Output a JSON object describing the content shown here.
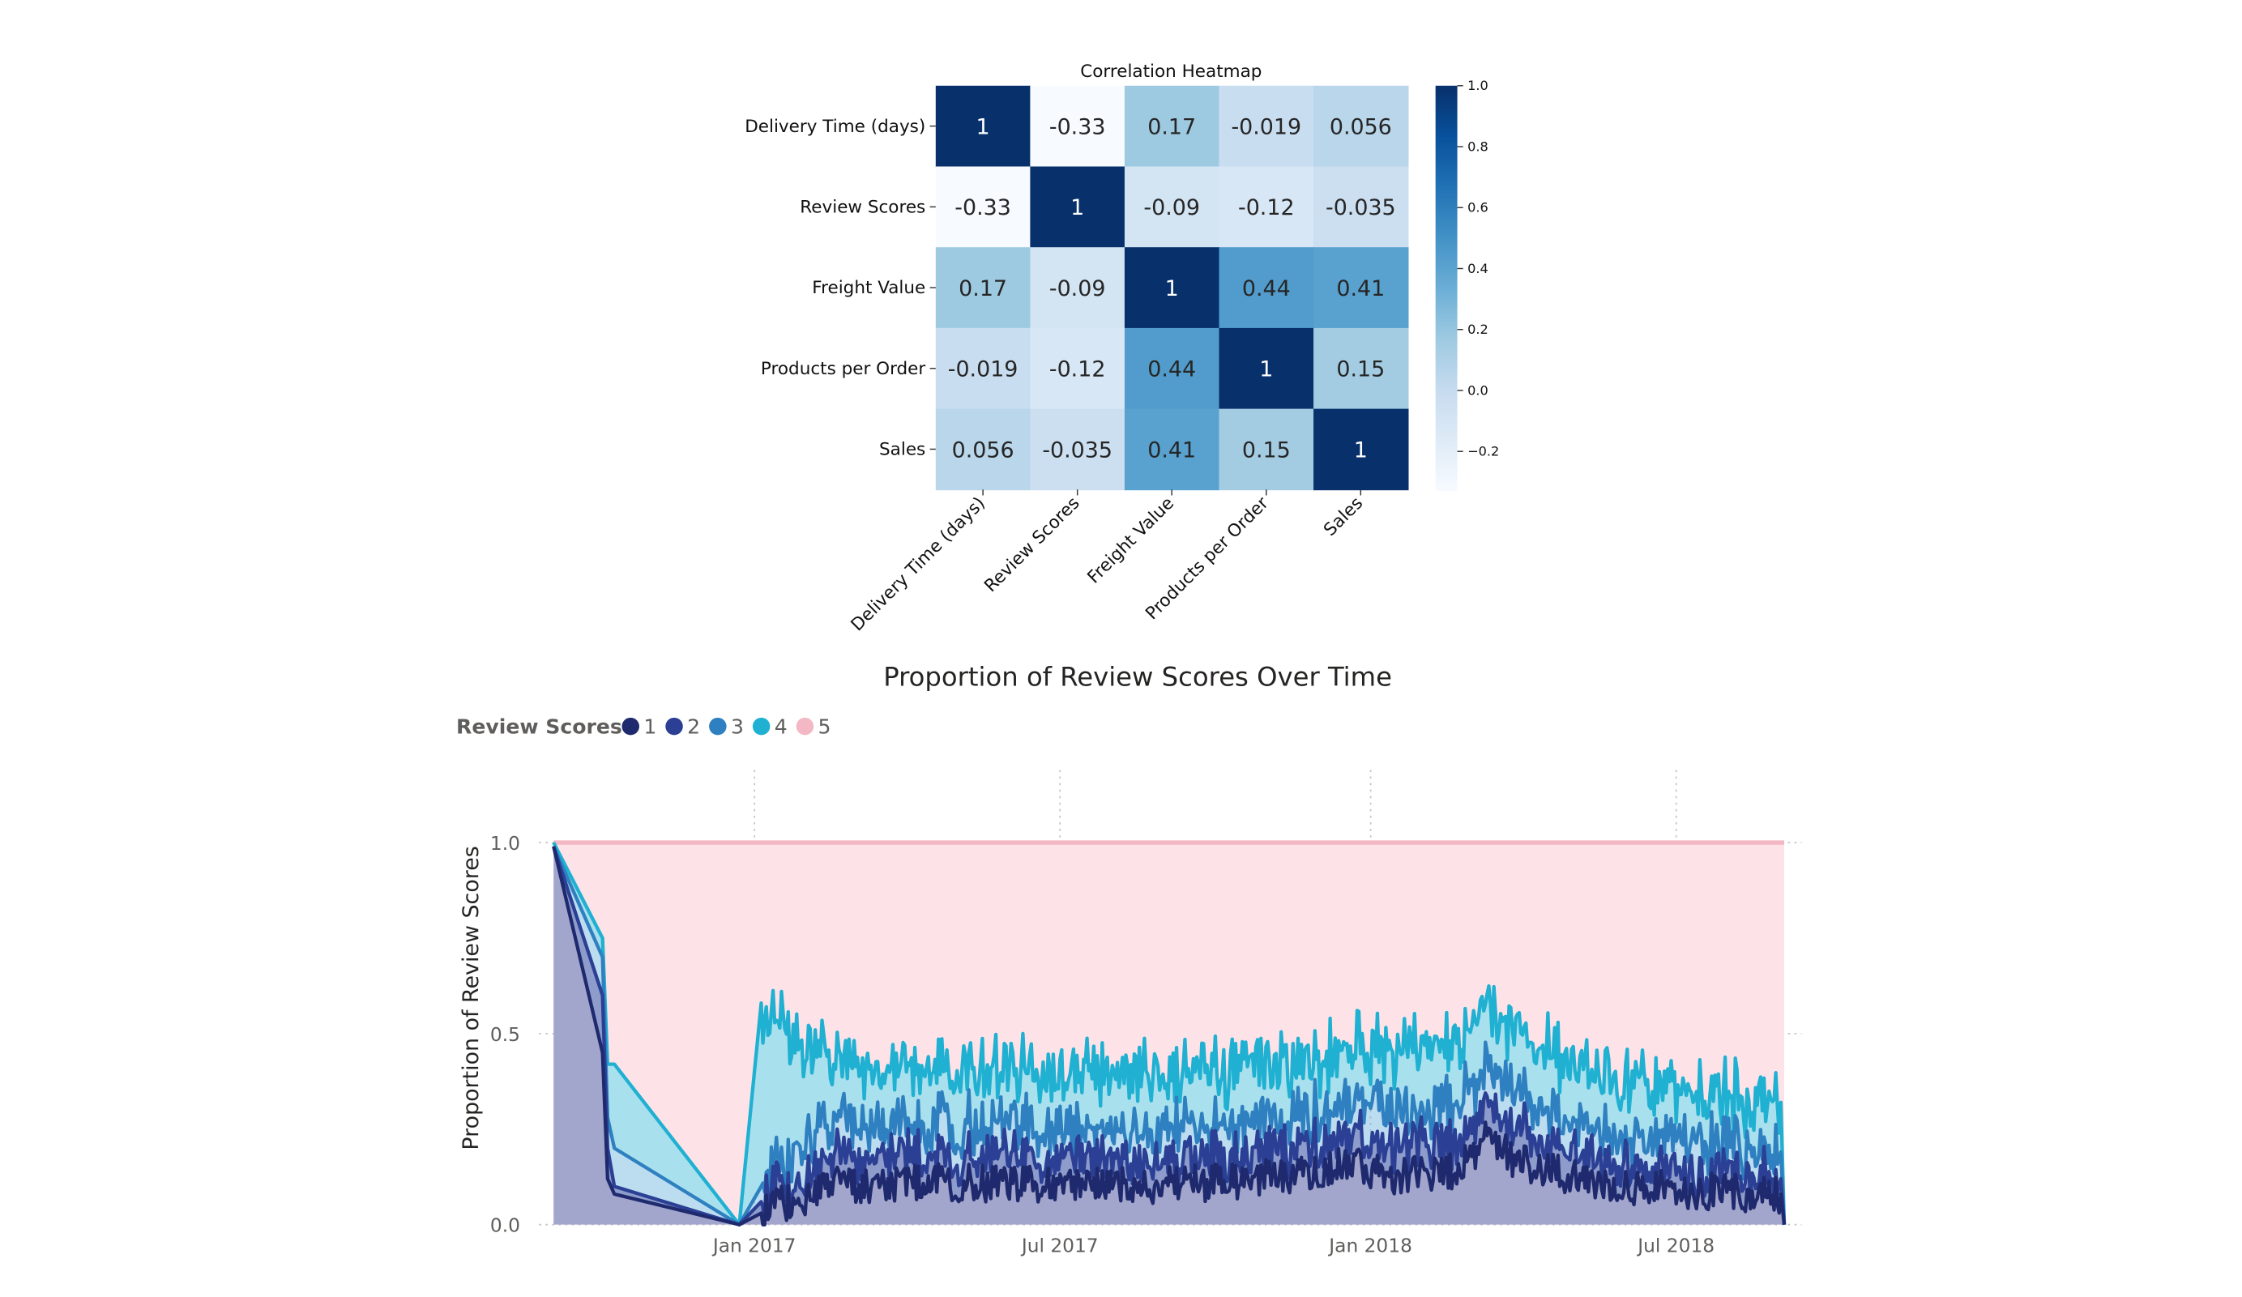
{
  "chart_data": [
    {
      "type": "heatmap",
      "title": "Correlation Heatmap",
      "rows": [
        "Delivery Time (days)",
        "Review Scores",
        "Freight Value",
        "Products per Order",
        "Sales"
      ],
      "cols": [
        "Delivery Time (days)",
        "Review Scores",
        "Freight Value",
        "Products per Order",
        "Sales"
      ],
      "values": [
        [
          1,
          -0.33,
          0.17,
          -0.019,
          0.056
        ],
        [
          -0.33,
          1,
          -0.09,
          -0.12,
          -0.035
        ],
        [
          0.17,
          -0.09,
          1,
          0.44,
          0.41
        ],
        [
          -0.019,
          -0.12,
          0.44,
          1,
          0.15
        ],
        [
          0.056,
          -0.035,
          0.41,
          0.15,
          1
        ]
      ],
      "labels": [
        [
          "1",
          "-0.33",
          "0.17",
          "-0.019",
          "0.056"
        ],
        [
          "-0.33",
          "1",
          "-0.09",
          "-0.12",
          "-0.035"
        ],
        [
          "0.17",
          "-0.09",
          "1",
          "0.44",
          "0.41"
        ],
        [
          "-0.019",
          "-0.12",
          "0.44",
          "1",
          "0.15"
        ],
        [
          "0.056",
          "-0.035",
          "0.41",
          "0.15",
          "1"
        ]
      ],
      "colorbar": {
        "min": -0.33,
        "max": 1.0,
        "ticks": [
          "1.0",
          "0.8",
          "0.6",
          "0.4",
          "0.2",
          "0.0",
          "−0.2"
        ],
        "tick_values": [
          1.0,
          0.8,
          0.6,
          0.4,
          0.2,
          0.0,
          -0.2
        ]
      },
      "colormap": "Blues"
    },
    {
      "type": "area",
      "stacked": true,
      "title": "Proportion of Review Scores Over Time",
      "ylabel": "Proportion of Review Scores",
      "xlabel": "",
      "ylim": [
        0,
        1
      ],
      "yticks": [
        "0.0",
        "0.5",
        "1.0"
      ],
      "xticks": [
        "Jan 2017",
        "Jul 2017",
        "Jan 2018",
        "Jul 2018"
      ],
      "xtick_dates": [
        "2017-01-01",
        "2017-07-01",
        "2018-01-01",
        "2018-07-01"
      ],
      "x_range": [
        "2016-09-04",
        "2018-09-03"
      ],
      "legend": {
        "title": "Review Scores",
        "position": "top-left"
      },
      "series": [
        {
          "name": "1",
          "color": "#1f2a6e"
        },
        {
          "name": "2",
          "color": "#2b3f95"
        },
        {
          "name": "3",
          "color": "#2f80c0"
        },
        {
          "name": "4",
          "color": "#1fb0d2"
        },
        {
          "name": "5",
          "color": "#f4b8c5"
        }
      ],
      "points": [
        {
          "date": "2016-09-04",
          "cum": [
            0.99,
            0.99,
            0.99,
            1.0,
            1.0
          ]
        },
        {
          "date": "2016-10-03",
          "cum": [
            0.45,
            0.6,
            0.7,
            0.75,
            1.0
          ]
        },
        {
          "date": "2016-10-06",
          "cum": [
            0.12,
            0.2,
            0.28,
            0.42,
            1.0
          ]
        },
        {
          "date": "2016-10-10",
          "cum": [
            0.08,
            0.1,
            0.2,
            0.42,
            1.0
          ]
        },
        {
          "date": "2016-12-23",
          "cum": [
            0.0,
            0.0,
            0.0,
            0.0,
            1.0
          ]
        },
        {
          "date": "2017-01-05",
          "cum": [
            0.03,
            0.06,
            0.1,
            0.58,
            1.0
          ]
        },
        {
          "date": "2017-02-15",
          "cum": [
            0.1,
            0.17,
            0.27,
            0.42,
            1.0
          ]
        },
        {
          "date": "2017-04-01",
          "cum": [
            0.11,
            0.18,
            0.26,
            0.41,
            1.0
          ]
        },
        {
          "date": "2017-05-15",
          "cum": [
            0.11,
            0.18,
            0.26,
            0.4,
            1.0
          ]
        },
        {
          "date": "2017-07-01",
          "cum": [
            0.1,
            0.17,
            0.25,
            0.39,
            1.0
          ]
        },
        {
          "date": "2017-08-15",
          "cum": [
            0.1,
            0.17,
            0.25,
            0.39,
            1.0
          ]
        },
        {
          "date": "2017-10-01",
          "cum": [
            0.11,
            0.17,
            0.25,
            0.39,
            1.0
          ]
        },
        {
          "date": "2017-11-20",
          "cum": [
            0.13,
            0.2,
            0.28,
            0.42,
            1.0
          ]
        },
        {
          "date": "2017-12-15",
          "cum": [
            0.16,
            0.24,
            0.32,
            0.46,
            1.0
          ]
        },
        {
          "date": "2018-01-15",
          "cum": [
            0.13,
            0.21,
            0.3,
            0.45,
            1.0
          ]
        },
        {
          "date": "2018-02-15",
          "cum": [
            0.13,
            0.21,
            0.3,
            0.46,
            1.0
          ]
        },
        {
          "date": "2018-03-10",
          "cum": [
            0.22,
            0.3,
            0.4,
            0.56,
            1.0
          ]
        },
        {
          "date": "2018-04-01",
          "cum": [
            0.16,
            0.24,
            0.33,
            0.48,
            1.0
          ]
        },
        {
          "date": "2018-05-15",
          "cum": [
            0.11,
            0.17,
            0.25,
            0.4,
            1.0
          ]
        },
        {
          "date": "2018-07-01",
          "cum": [
            0.09,
            0.14,
            0.22,
            0.36,
            1.0
          ]
        },
        {
          "date": "2018-08-15",
          "cum": [
            0.08,
            0.13,
            0.2,
            0.32,
            1.0
          ]
        },
        {
          "date": "2018-09-01",
          "cum": [
            0.08,
            0.12,
            0.19,
            0.32,
            1.0
          ]
        },
        {
          "date": "2018-09-03",
          "cum": [
            0.0,
            0.0,
            0.0,
            0.0,
            1.0
          ]
        }
      ]
    }
  ]
}
